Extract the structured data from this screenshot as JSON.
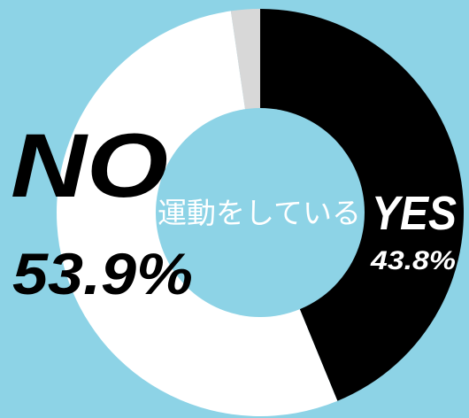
{
  "chart_data": {
    "type": "pie",
    "variant": "donut",
    "title": "",
    "center_label": "運動をしている",
    "slices": [
      {
        "label": "YES",
        "value": 43.8,
        "value_label": "43.8%",
        "color": "#000000"
      },
      {
        "label": "NO",
        "value": 53.9,
        "value_label": "53.9%",
        "color": "#ffffff"
      },
      {
        "label": "",
        "value": 2.3,
        "value_label": "",
        "color": "#d8d8d8"
      }
    ]
  },
  "colors": {
    "background": "#8dd3e6",
    "center": "#8dd3e6",
    "yes_slice": "#000000",
    "no_slice": "#ffffff",
    "other_slice": "#d8d8d8",
    "yes_text": "#ffffff",
    "no_text": "#000000",
    "center_text": "#ffffff"
  }
}
